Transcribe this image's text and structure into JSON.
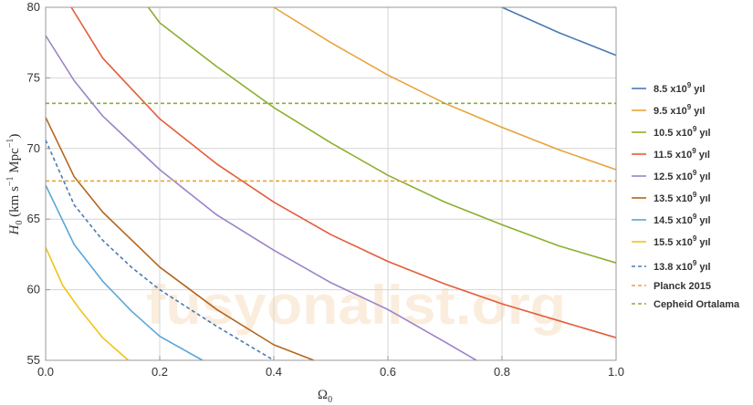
{
  "chart_data": {
    "type": "line",
    "title": "",
    "xlabel": "Ω",
    "xlabel_sub": "0",
    "ylabel_parts": [
      "H",
      "0",
      " (km s",
      "−1",
      " Mpc",
      "−1",
      ")"
    ],
    "xlim": [
      0,
      1
    ],
    "ylim": [
      55,
      80
    ],
    "x_ticks": [
      "0.0",
      "0.2",
      "0.4",
      "0.6",
      "0.8",
      "1.0"
    ],
    "y_ticks": [
      "55",
      "60",
      "65",
      "70",
      "75",
      "80"
    ],
    "grid": true,
    "legend_position": "right",
    "watermark": "fusyonalist.org",
    "series": [
      {
        "name_base": "8.5 x10",
        "name_exp": "9",
        "name_unit": " yıl",
        "color": "#4a7ab3",
        "style": "solid",
        "x": [
          0.8,
          0.9,
          1.0
        ],
        "y": [
          80.0,
          78.2,
          76.6
        ]
      },
      {
        "name_base": "9.5 x10",
        "name_exp": "9",
        "name_unit": " yıl",
        "color": "#e8a33b",
        "style": "solid",
        "x": [
          0.4,
          0.5,
          0.6,
          0.7,
          0.8,
          0.9,
          1.0
        ],
        "y": [
          80.0,
          77.5,
          75.2,
          73.2,
          71.5,
          69.9,
          68.5
        ]
      },
      {
        "name_base": "10.5 x10",
        "name_exp": "9",
        "name_unit": " yıl",
        "color": "#8ab02e",
        "style": "solid",
        "x": [
          0.18,
          0.2,
          0.3,
          0.4,
          0.5,
          0.6,
          0.7,
          0.8,
          0.9,
          1.0
        ],
        "y": [
          80.0,
          78.9,
          75.8,
          72.9,
          70.4,
          68.1,
          66.2,
          64.6,
          63.1,
          61.9
        ]
      },
      {
        "name_base": "11.5 x10",
        "name_exp": "9",
        "name_unit": " yıl",
        "color": "#e45c3a",
        "style": "solid",
        "x": [
          0.045,
          0.1,
          0.2,
          0.3,
          0.4,
          0.5,
          0.6,
          0.7,
          0.8,
          0.9,
          1.0
        ],
        "y": [
          80.0,
          76.4,
          72.1,
          68.9,
          66.2,
          63.9,
          62.0,
          60.4,
          59.0,
          57.8,
          56.6
        ]
      },
      {
        "name_base": "12.5 x10",
        "name_exp": "9",
        "name_unit": " yıl",
        "color": "#9b82c8",
        "style": "solid",
        "x": [
          0.0,
          0.05,
          0.1,
          0.2,
          0.3,
          0.4,
          0.5,
          0.6,
          0.7,
          0.755
        ],
        "y": [
          78.0,
          74.8,
          72.3,
          68.5,
          65.3,
          62.8,
          60.5,
          58.6,
          56.3,
          55.0
        ]
      },
      {
        "name_base": "13.5 x10",
        "name_exp": "9",
        "name_unit": " yıl",
        "color": "#b5651d",
        "style": "solid",
        "x": [
          0.0,
          0.05,
          0.1,
          0.2,
          0.3,
          0.4,
          0.47
        ],
        "y": [
          72.2,
          68.0,
          65.5,
          61.6,
          58.6,
          56.1,
          55.0
        ]
      },
      {
        "name_base": "14.5 x10",
        "name_exp": "9",
        "name_unit": " yıl",
        "color": "#5aa7d6",
        "style": "solid",
        "x": [
          0.0,
          0.05,
          0.1,
          0.15,
          0.2,
          0.275
        ],
        "y": [
          67.4,
          63.2,
          60.6,
          58.5,
          56.7,
          55.0
        ]
      },
      {
        "name_base": "15.5 x10",
        "name_exp": "9",
        "name_unit": " yıl",
        "color": "#f2c318",
        "style": "solid",
        "x": [
          0.0,
          0.03,
          0.06,
          0.1,
          0.145
        ],
        "y": [
          63.0,
          60.3,
          58.6,
          56.6,
          55.0
        ]
      },
      {
        "name_base": "13.8 x10",
        "name_exp": "9",
        "name_unit": " yıl",
        "color": "#4a7ab3",
        "style": "dashed",
        "x": [
          0.0,
          0.05,
          0.1,
          0.15,
          0.2,
          0.3,
          0.4
        ],
        "y": [
          70.6,
          66.0,
          63.5,
          61.6,
          60.0,
          57.4,
          55.0
        ]
      },
      {
        "name_base": "Planck 2015",
        "name_exp": "",
        "name_unit": "",
        "color": "#e8a33b",
        "style": "dashed",
        "x": [
          0.0,
          1.0
        ],
        "y": [
          67.7,
          67.7
        ]
      },
      {
        "name_base": "Cepheid Ortalama",
        "name_exp": "",
        "name_unit": "",
        "color": "#8ab02e",
        "style": "dashed",
        "x": [
          0.0,
          1.0
        ],
        "y": [
          73.2,
          73.2
        ]
      }
    ]
  }
}
